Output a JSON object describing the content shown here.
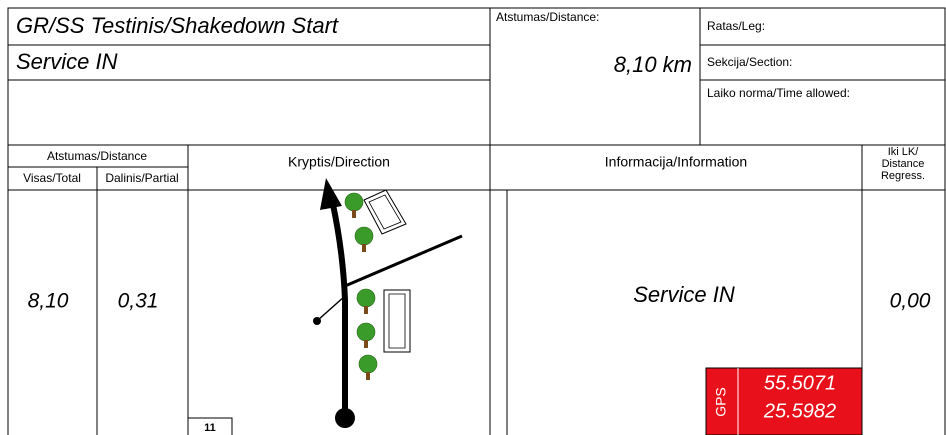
{
  "header": {
    "title": "GR/SS Testinis/Shakedown Start",
    "subtitle": "Service IN",
    "distance_label": "Atstumas/Distance:",
    "distance_value": "8,10 km",
    "leg_label": "Ratas/Leg:",
    "section_label": "Sekcija/Section:",
    "time_label": "Laiko norma/Time allowed:"
  },
  "table": {
    "headers": {
      "distance": "Atstumas/Distance",
      "total": "Visas/Total",
      "partial": "Dalinis/Partial",
      "direction": "Kryptis/Direction",
      "information": "Informacija/Information",
      "regress": [
        "Iki LK/",
        "Distance",
        "Regress."
      ]
    },
    "row": {
      "total": "8,10",
      "partial": "0,31",
      "information": "Service IN",
      "regress": "0,00",
      "number": "11",
      "gps": {
        "label": "GPS",
        "lat": "55.5071",
        "lon": "25.5982"
      }
    }
  }
}
